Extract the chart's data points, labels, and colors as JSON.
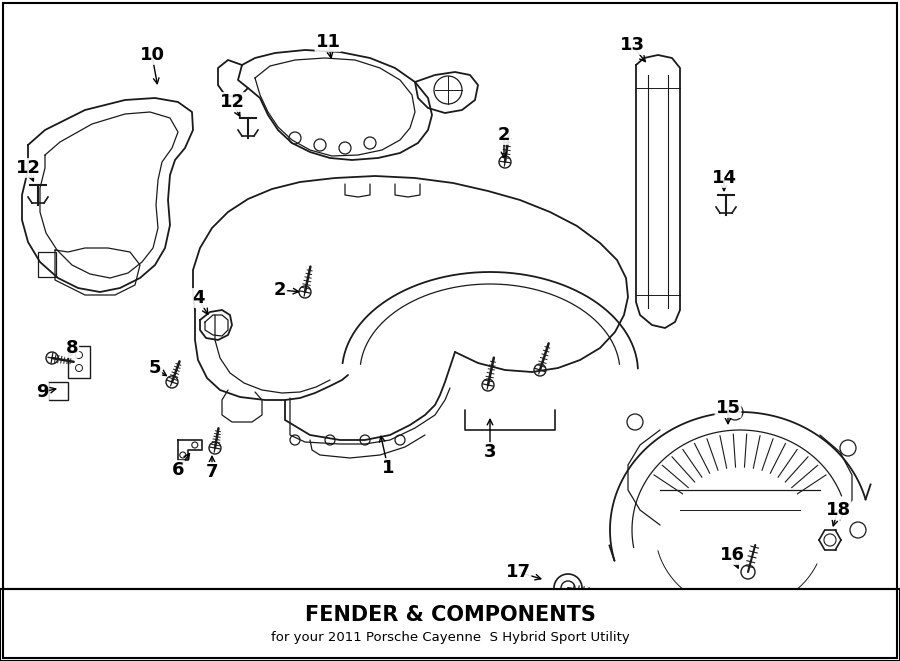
{
  "title": "FENDER & COMPONENTS",
  "subtitle": "for your 2011 Porsche Cayenne  S Hybrid Sport Utility",
  "bg_color": "#ffffff",
  "line_color": "#1a1a1a",
  "figsize": [
    9.0,
    6.61
  ],
  "dpi": 100
}
